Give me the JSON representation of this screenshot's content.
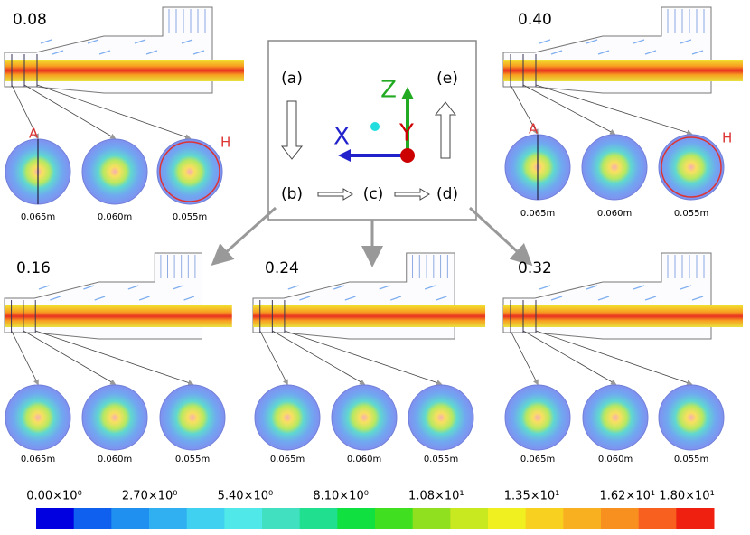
{
  "panels": [
    {
      "time": "0.08",
      "sections": [
        "0.065m",
        "0.060m",
        "0.055m"
      ],
      "markers": [
        "A",
        "H"
      ]
    },
    {
      "time": "0.40",
      "sections": [
        "0.065m",
        "0.060m",
        "0.055m"
      ],
      "markers": [
        "A",
        "H"
      ]
    },
    {
      "time": "0.16",
      "sections": [
        "0.065m",
        "0.060m",
        "0.055m"
      ]
    },
    {
      "time": "0.24",
      "sections": [
        "0.065m",
        "0.060m",
        "0.055m"
      ]
    },
    {
      "time": "0.32",
      "sections": [
        "0.065m",
        "0.060m",
        "0.055m"
      ]
    }
  ],
  "legend": {
    "steps": [
      "(a)",
      "(b)",
      "(c)",
      "(d)",
      "(e)"
    ],
    "axes": {
      "x": "X",
      "y": "Y",
      "z": "Z"
    }
  },
  "colorbar": {
    "labels": [
      "0.00×10⁰",
      "2.70×10⁰",
      "5.40×10⁰",
      "8.10×10⁰",
      "1.08×10¹",
      "1.35×10¹",
      "1.62×10¹",
      "1.80×10¹"
    ],
    "colors": [
      "#0000e0",
      "#1060f0",
      "#2090f0",
      "#30b0f0",
      "#40d0f0",
      "#50e8e8",
      "#40e0c0",
      "#20e090",
      "#10e040",
      "#40e020",
      "#90e020",
      "#c8e820",
      "#f0f020",
      "#f8d020",
      "#f8b020",
      "#f89020",
      "#f86020",
      "#f02010"
    ]
  }
}
